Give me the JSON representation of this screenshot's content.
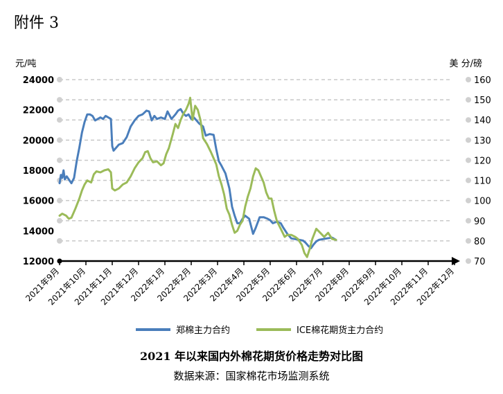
{
  "header": "附件 3",
  "chart_data": {
    "type": "line",
    "title": "2021 年以来国内外棉花期货价格走势对比图",
    "source": "数据来源：国家棉花市场监测系统",
    "left_axis": {
      "unit": "元/吨",
      "ylim": [
        12000,
        24000
      ],
      "ticks": [
        "12000",
        "14000",
        "16000",
        "18000",
        "20000",
        "22000",
        "24000"
      ]
    },
    "right_axis": {
      "unit": "美 分/磅",
      "ylim": [
        70,
        160
      ],
      "ticks": [
        "70",
        "80",
        "90",
        "100",
        "110",
        "120",
        "130",
        "140",
        "150",
        "160"
      ]
    },
    "x_ticks": [
      "2021年9月",
      "2021年10月",
      "2021年11月",
      "2021年12月",
      "2022年1月",
      "2022年2月",
      "2022年3月",
      "2022年4月",
      "2022年5月",
      "2022年6月",
      "2022年7月",
      "2022年8月",
      "2022年9月",
      "2022年10月",
      "2022年11月",
      "2022年12月"
    ],
    "grid": "horizontal dashed",
    "legend_position": "bottom",
    "series": [
      {
        "name": "郑棉主力合约",
        "axis": "left",
        "color": "#4a7ebb",
        "points": [
          [
            0.0,
            17150
          ],
          [
            0.05,
            17700
          ],
          [
            0.1,
            17500
          ],
          [
            0.15,
            18000
          ],
          [
            0.2,
            17400
          ],
          [
            0.27,
            17600
          ],
          [
            0.35,
            17400
          ],
          [
            0.45,
            17150
          ],
          [
            0.55,
            17500
          ],
          [
            0.65,
            18600
          ],
          [
            0.75,
            19500
          ],
          [
            0.85,
            20500
          ],
          [
            0.95,
            21200
          ],
          [
            1.05,
            21700
          ],
          [
            1.15,
            21700
          ],
          [
            1.25,
            21600
          ],
          [
            1.35,
            21300
          ],
          [
            1.45,
            21400
          ],
          [
            1.55,
            21500
          ],
          [
            1.65,
            21400
          ],
          [
            1.75,
            21600
          ],
          [
            1.85,
            21500
          ],
          [
            1.95,
            21400
          ],
          [
            2.0,
            19600
          ],
          [
            2.05,
            19300
          ],
          [
            2.15,
            19500
          ],
          [
            2.25,
            19700
          ],
          [
            2.4,
            19800
          ],
          [
            2.55,
            20200
          ],
          [
            2.7,
            20900
          ],
          [
            2.85,
            21300
          ],
          [
            3.0,
            21600
          ],
          [
            3.15,
            21700
          ],
          [
            3.3,
            21950
          ],
          [
            3.4,
            21900
          ],
          [
            3.5,
            21300
          ],
          [
            3.6,
            21600
          ],
          [
            3.7,
            21400
          ],
          [
            3.85,
            21500
          ],
          [
            4.0,
            21400
          ],
          [
            4.1,
            21900
          ],
          [
            4.25,
            21400
          ],
          [
            4.4,
            21700
          ],
          [
            4.5,
            21950
          ],
          [
            4.6,
            22050
          ],
          [
            4.7,
            21750
          ],
          [
            4.8,
            21600
          ],
          [
            4.9,
            21700
          ],
          [
            5.0,
            21400
          ],
          [
            5.1,
            21500
          ],
          [
            5.2,
            21300
          ],
          [
            5.3,
            21100
          ],
          [
            5.45,
            20900
          ],
          [
            5.55,
            20300
          ],
          [
            5.7,
            20400
          ],
          [
            5.85,
            20350
          ],
          [
            5.95,
            19400
          ],
          [
            6.05,
            18600
          ],
          [
            6.15,
            18300
          ],
          [
            6.3,
            17800
          ],
          [
            6.45,
            16800
          ],
          [
            6.55,
            15600
          ],
          [
            6.65,
            15000
          ],
          [
            6.75,
            14500
          ],
          [
            6.85,
            14500
          ],
          [
            6.95,
            14800
          ],
          [
            7.05,
            15000
          ],
          [
            7.2,
            14800
          ],
          [
            7.35,
            13800
          ],
          [
            7.45,
            14200
          ],
          [
            7.6,
            14900
          ],
          [
            7.75,
            14900
          ],
          [
            7.9,
            14800
          ],
          [
            8.0,
            14700
          ],
          [
            8.1,
            14500
          ],
          [
            8.25,
            14600
          ],
          [
            8.4,
            14500
          ],
          [
            8.5,
            14200
          ],
          [
            8.65,
            13800
          ],
          [
            8.8,
            13500
          ],
          [
            8.95,
            13450
          ],
          [
            9.1,
            13400
          ],
          [
            9.25,
            13350
          ],
          [
            9.35,
            13200
          ],
          [
            9.45,
            13000
          ],
          [
            9.55,
            12850
          ],
          [
            9.65,
            13100
          ],
          [
            9.75,
            13300
          ],
          [
            9.85,
            13400
          ],
          [
            10.0,
            13450
          ],
          [
            10.15,
            13500
          ],
          [
            10.35,
            13550
          ],
          [
            10.5,
            13400
          ]
        ]
      },
      {
        "name": "ICE棉花期货主力合约",
        "axis": "right",
        "color": "#9bbb59",
        "points": [
          [
            0.0,
            92.5
          ],
          [
            0.1,
            93.5
          ],
          [
            0.25,
            92.5
          ],
          [
            0.35,
            91.0
          ],
          [
            0.45,
            91.5
          ],
          [
            0.6,
            96.0
          ],
          [
            0.75,
            101
          ],
          [
            0.85,
            105
          ],
          [
            0.95,
            108
          ],
          [
            1.05,
            110
          ],
          [
            1.2,
            109
          ],
          [
            1.3,
            113
          ],
          [
            1.4,
            114.5
          ],
          [
            1.55,
            114
          ],
          [
            1.7,
            115
          ],
          [
            1.85,
            115.5
          ],
          [
            1.95,
            114
          ],
          [
            2.0,
            106
          ],
          [
            2.1,
            105
          ],
          [
            2.25,
            106
          ],
          [
            2.4,
            108
          ],
          [
            2.55,
            109
          ],
          [
            2.7,
            112
          ],
          [
            2.85,
            116
          ],
          [
            3.0,
            119
          ],
          [
            3.15,
            121
          ],
          [
            3.25,
            124
          ],
          [
            3.35,
            124.5
          ],
          [
            3.45,
            121
          ],
          [
            3.55,
            119
          ],
          [
            3.7,
            119.5
          ],
          [
            3.85,
            117.5
          ],
          [
            3.95,
            118.5
          ],
          [
            4.05,
            123
          ],
          [
            4.15,
            126
          ],
          [
            4.3,
            133
          ],
          [
            4.4,
            138
          ],
          [
            4.5,
            136
          ],
          [
            4.6,
            140
          ],
          [
            4.7,
            143
          ],
          [
            4.8,
            145
          ],
          [
            4.9,
            148
          ],
          [
            4.96,
            151
          ],
          [
            5.05,
            140
          ],
          [
            5.15,
            147
          ],
          [
            5.25,
            145
          ],
          [
            5.35,
            140
          ],
          [
            5.45,
            131
          ],
          [
            5.6,
            128
          ],
          [
            5.75,
            124
          ],
          [
            5.85,
            121
          ],
          [
            5.95,
            118
          ],
          [
            6.05,
            112
          ],
          [
            6.15,
            108
          ],
          [
            6.25,
            103
          ],
          [
            6.35,
            96
          ],
          [
            6.45,
            93
          ],
          [
            6.55,
            88
          ],
          [
            6.65,
            84
          ],
          [
            6.75,
            85
          ],
          [
            6.85,
            88
          ],
          [
            6.95,
            90
          ],
          [
            7.05,
            97
          ],
          [
            7.15,
            102
          ],
          [
            7.25,
            106
          ],
          [
            7.35,
            112
          ],
          [
            7.45,
            116
          ],
          [
            7.55,
            115
          ],
          [
            7.65,
            112
          ],
          [
            7.75,
            109
          ],
          [
            7.85,
            104
          ],
          [
            7.95,
            101
          ],
          [
            8.05,
            101
          ],
          [
            8.15,
            95
          ],
          [
            8.25,
            90
          ],
          [
            8.4,
            86
          ],
          [
            8.55,
            82
          ],
          [
            8.65,
            83
          ],
          [
            8.8,
            83
          ],
          [
            8.95,
            82
          ],
          [
            9.05,
            81
          ],
          [
            9.2,
            78
          ],
          [
            9.3,
            74
          ],
          [
            9.4,
            72
          ],
          [
            9.5,
            76
          ],
          [
            9.6,
            81
          ],
          [
            9.75,
            86
          ],
          [
            9.9,
            84
          ],
          [
            10.05,
            82
          ],
          [
            10.2,
            84
          ],
          [
            10.35,
            81
          ],
          [
            10.5,
            80.5
          ]
        ]
      }
    ]
  }
}
